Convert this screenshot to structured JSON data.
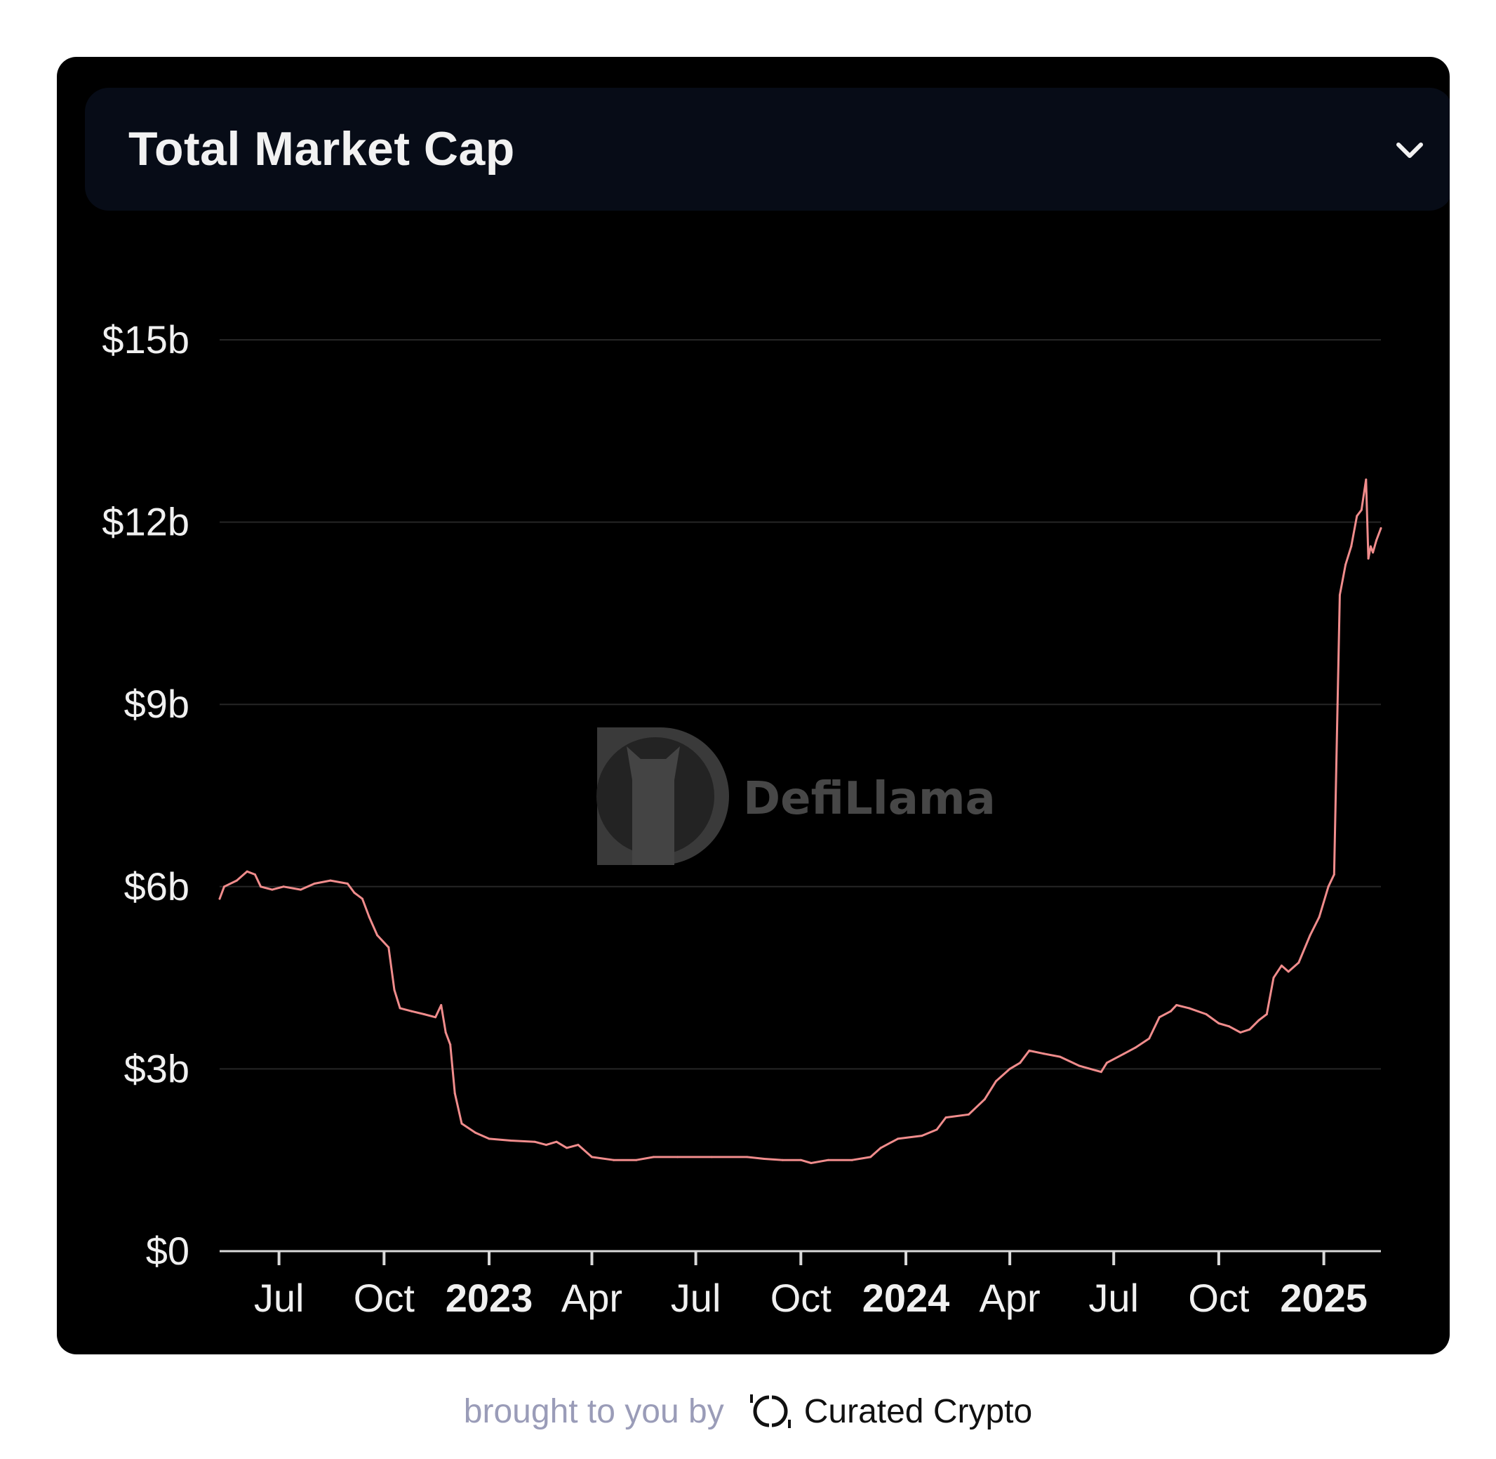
{
  "header": {
    "title": "Total Market Cap"
  },
  "watermark": {
    "text": "DefiLlama"
  },
  "footer": {
    "text": "brought to you by",
    "brand": "Curated Crypto"
  },
  "colors": {
    "line": "#f08c8c",
    "grid": "#262626",
    "axis": "#d9d9d9",
    "tick_label": "#f0f0f0",
    "card_bg": "#000000",
    "header_bg": "#070c17"
  },
  "chart_data": {
    "type": "line",
    "title": "Total Market Cap",
    "xlabel": "",
    "ylabel": "",
    "ylim": [
      0,
      15
    ],
    "y_unit": "billions USD",
    "yticks": [
      0,
      3,
      6,
      9,
      12,
      15
    ],
    "ytick_labels": [
      "$0",
      "$3b",
      "$6b",
      "$9b",
      "$12b",
      "$15b"
    ],
    "xlim": [
      "2022-05-10",
      "2025-02-20"
    ],
    "xticks": [
      {
        "date": "2022-07-01",
        "label": "Jul",
        "bold": false
      },
      {
        "date": "2022-10-01",
        "label": "Oct",
        "bold": false
      },
      {
        "date": "2023-01-01",
        "label": "2023",
        "bold": true
      },
      {
        "date": "2023-04-01",
        "label": "Apr",
        "bold": false
      },
      {
        "date": "2023-07-01",
        "label": "Jul",
        "bold": false
      },
      {
        "date": "2023-10-01",
        "label": "Oct",
        "bold": false
      },
      {
        "date": "2024-01-01",
        "label": "2024",
        "bold": true
      },
      {
        "date": "2024-04-01",
        "label": "Apr",
        "bold": false
      },
      {
        "date": "2024-07-01",
        "label": "Jul",
        "bold": false
      },
      {
        "date": "2024-10-01",
        "label": "Oct",
        "bold": false
      },
      {
        "date": "2025-01-01",
        "label": "2025",
        "bold": true
      }
    ],
    "grid": true,
    "legend": "none",
    "series": [
      {
        "points": [
          [
            "2022-05-10",
            5.8
          ],
          [
            "2022-05-14",
            6.0
          ],
          [
            "2022-05-25",
            6.1
          ],
          [
            "2022-06-03",
            6.25
          ],
          [
            "2022-06-10",
            6.2
          ],
          [
            "2022-06-15",
            6.0
          ],
          [
            "2022-06-25",
            5.95
          ],
          [
            "2022-07-05",
            6.0
          ],
          [
            "2022-07-20",
            5.95
          ],
          [
            "2022-08-01",
            6.05
          ],
          [
            "2022-08-15",
            6.1
          ],
          [
            "2022-08-30",
            6.05
          ],
          [
            "2022-09-05",
            5.9
          ],
          [
            "2022-09-12",
            5.8
          ],
          [
            "2022-09-18",
            5.5
          ],
          [
            "2022-09-25",
            5.2
          ],
          [
            "2022-10-05",
            5.0
          ],
          [
            "2022-10-10",
            4.3
          ],
          [
            "2022-10-15",
            4.0
          ],
          [
            "2022-10-25",
            3.95
          ],
          [
            "2022-11-05",
            3.9
          ],
          [
            "2022-11-15",
            3.85
          ],
          [
            "2022-11-20",
            4.05
          ],
          [
            "2022-11-24",
            3.6
          ],
          [
            "2022-11-28",
            3.4
          ],
          [
            "2022-12-02",
            2.6
          ],
          [
            "2022-12-08",
            2.1
          ],
          [
            "2022-12-20",
            1.95
          ],
          [
            "2023-01-01",
            1.85
          ],
          [
            "2023-01-20",
            1.82
          ],
          [
            "2023-02-10",
            1.8
          ],
          [
            "2023-02-20",
            1.75
          ],
          [
            "2023-03-01",
            1.8
          ],
          [
            "2023-03-10",
            1.7
          ],
          [
            "2023-03-20",
            1.75
          ],
          [
            "2023-04-01",
            1.55
          ],
          [
            "2023-04-20",
            1.5
          ],
          [
            "2023-05-10",
            1.5
          ],
          [
            "2023-05-25",
            1.55
          ],
          [
            "2023-06-15",
            1.55
          ],
          [
            "2023-07-15",
            1.55
          ],
          [
            "2023-08-15",
            1.55
          ],
          [
            "2023-08-30",
            1.52
          ],
          [
            "2023-09-15",
            1.5
          ],
          [
            "2023-10-01",
            1.5
          ],
          [
            "2023-10-10",
            1.45
          ],
          [
            "2023-10-25",
            1.5
          ],
          [
            "2023-11-15",
            1.5
          ],
          [
            "2023-12-01",
            1.55
          ],
          [
            "2023-12-10",
            1.7
          ],
          [
            "2023-12-25",
            1.85
          ],
          [
            "2024-01-15",
            1.9
          ],
          [
            "2024-01-28",
            2.0
          ],
          [
            "2024-02-05",
            2.2
          ],
          [
            "2024-02-25",
            2.25
          ],
          [
            "2024-03-10",
            2.5
          ],
          [
            "2024-03-20",
            2.8
          ],
          [
            "2024-04-01",
            3.0
          ],
          [
            "2024-04-10",
            3.1
          ],
          [
            "2024-04-18",
            3.3
          ],
          [
            "2024-05-01",
            3.25
          ],
          [
            "2024-05-15",
            3.2
          ],
          [
            "2024-06-01",
            3.05
          ],
          [
            "2024-06-20",
            2.95
          ],
          [
            "2024-06-25",
            3.1
          ],
          [
            "2024-07-10",
            3.25
          ],
          [
            "2024-07-20",
            3.35
          ],
          [
            "2024-08-01",
            3.5
          ],
          [
            "2024-08-10",
            3.85
          ],
          [
            "2024-08-20",
            3.95
          ],
          [
            "2024-08-25",
            4.05
          ],
          [
            "2024-09-05",
            4.0
          ],
          [
            "2024-09-20",
            3.9
          ],
          [
            "2024-10-01",
            3.75
          ],
          [
            "2024-10-10",
            3.7
          ],
          [
            "2024-10-20",
            3.6
          ],
          [
            "2024-10-28",
            3.65
          ],
          [
            "2024-11-05",
            3.8
          ],
          [
            "2024-11-12",
            3.9
          ],
          [
            "2024-11-18",
            4.5
          ],
          [
            "2024-11-25",
            4.7
          ],
          [
            "2024-12-01",
            4.6
          ],
          [
            "2024-12-10",
            4.75
          ],
          [
            "2024-12-20",
            5.2
          ],
          [
            "2024-12-28",
            5.5
          ],
          [
            "2025-01-05",
            6.0
          ],
          [
            "2025-01-10",
            6.2
          ],
          [
            "2025-01-13",
            9.0
          ],
          [
            "2025-01-15",
            10.8
          ],
          [
            "2025-01-20",
            11.3
          ],
          [
            "2025-01-25",
            11.6
          ],
          [
            "2025-01-30",
            12.1
          ],
          [
            "2025-02-03",
            12.2
          ],
          [
            "2025-02-07",
            12.7
          ],
          [
            "2025-02-09",
            11.4
          ],
          [
            "2025-02-11",
            11.6
          ],
          [
            "2025-02-13",
            11.5
          ],
          [
            "2025-02-16",
            11.7
          ],
          [
            "2025-02-20",
            11.9
          ]
        ]
      }
    ]
  }
}
